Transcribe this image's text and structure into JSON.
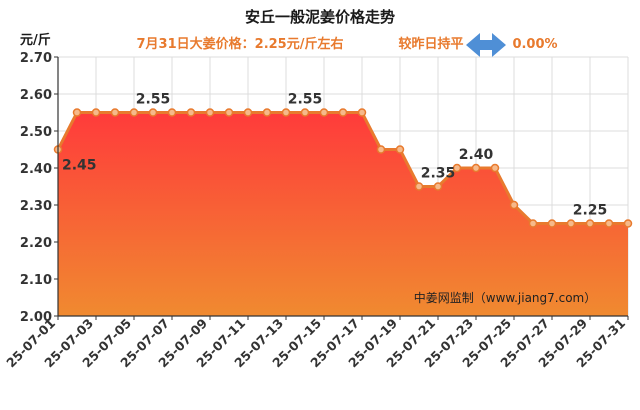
{
  "header": {
    "title": "安丘一般泥姜价格走势",
    "subtitle": "7月31日大姜价格：2.25元/斤左右",
    "compare_label": "较昨日持平",
    "compare_value": "0.00%",
    "accent_color": "#e87a2e",
    "arrow_color": "#4f8fd6",
    "arrow_icon": "double-arrow-icon"
  },
  "source_note": "中姜网监制（www.jiang7.com）",
  "chart_data": {
    "type": "area",
    "ylabel": "元/斤",
    "ylim": [
      2.0,
      2.7
    ],
    "yticks": [
      "2.00",
      "2.10",
      "2.20",
      "2.30",
      "2.40",
      "2.50",
      "2.60",
      "2.70"
    ],
    "x": [
      "25-07-01",
      "25-07-02",
      "25-07-03",
      "25-07-04",
      "25-07-05",
      "25-07-06",
      "25-07-07",
      "25-07-08",
      "25-07-09",
      "25-07-10",
      "25-07-11",
      "25-07-12",
      "25-07-13",
      "25-07-14",
      "25-07-15",
      "25-07-16",
      "25-07-17",
      "25-07-18",
      "25-07-19",
      "25-07-20",
      "25-07-21",
      "25-07-22",
      "25-07-23",
      "25-07-24",
      "25-07-25",
      "25-07-26",
      "25-07-27",
      "25-07-28",
      "25-07-29",
      "25-07-30",
      "25-07-31"
    ],
    "xtick_labels": [
      "25-07-01",
      "25-07-03",
      "25-07-05",
      "25-07-07",
      "25-07-09",
      "25-07-11",
      "25-07-13",
      "25-07-15",
      "25-07-17",
      "25-07-19",
      "25-07-21",
      "25-07-23",
      "25-07-25",
      "25-07-27",
      "25-07-29",
      "25-07-31"
    ],
    "values": [
      2.45,
      2.55,
      2.55,
      2.55,
      2.55,
      2.55,
      2.55,
      2.55,
      2.55,
      2.55,
      2.55,
      2.55,
      2.55,
      2.55,
      2.55,
      2.55,
      2.55,
      2.45,
      2.45,
      2.35,
      2.35,
      2.4,
      2.4,
      2.4,
      2.3,
      2.25,
      2.25,
      2.25,
      2.25,
      2.25,
      2.25
    ],
    "data_labels": [
      {
        "index": 0,
        "text": "2.45"
      },
      {
        "index": 5,
        "text": "2.55"
      },
      {
        "index": 13,
        "text": "2.55"
      },
      {
        "index": 20,
        "text": "2.35"
      },
      {
        "index": 22,
        "text": "2.40"
      },
      {
        "index": 28,
        "text": "2.25"
      }
    ],
    "line_color": "#e87a2e",
    "fill_top_color": "#ff3b3b",
    "fill_bottom_color": "#f08a30",
    "grid": true,
    "legend": "none"
  }
}
